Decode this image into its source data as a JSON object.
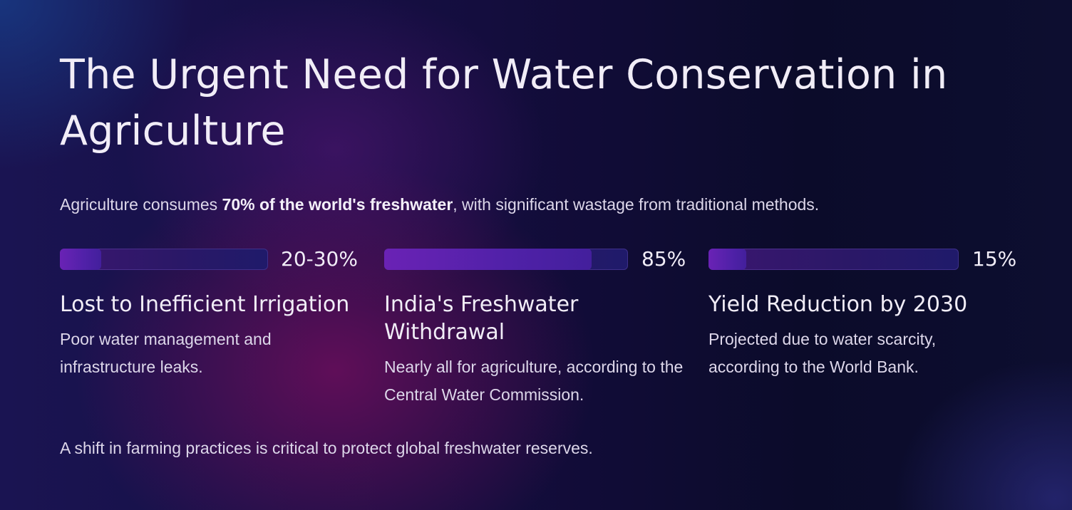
{
  "slide": {
    "title": "The Urgent Need for Water Conservation in Agriculture",
    "intro": {
      "prefix": "Agriculture consumes ",
      "highlight": "70% of the world's freshwater",
      "suffix": ", with significant wastage from traditional methods."
    },
    "stats": [
      {
        "value": "20-30%",
        "bar_fill_percent": 20,
        "title": "Lost to Inefficient Irrigation",
        "description": "Poor water management and infrastructure leaks."
      },
      {
        "value": "85%",
        "bar_fill_percent": 85,
        "title": "India's Freshwater Withdrawal",
        "description": "Nearly all for agriculture, according to the Central Water Commission."
      },
      {
        "value": "15%",
        "bar_fill_percent": 15,
        "title": "Yield Reduction by 2030",
        "description": "Projected due to water scarcity, according to the World Bank."
      }
    ],
    "conclusion": "A shift in farming practices is critical to protect global freshwater reserves."
  },
  "colors": {
    "bar_fill": "#5a22ad",
    "bar_track": "#2b1867",
    "text_primary": "#f1edf7",
    "text_secondary": "#ddd7ea"
  }
}
